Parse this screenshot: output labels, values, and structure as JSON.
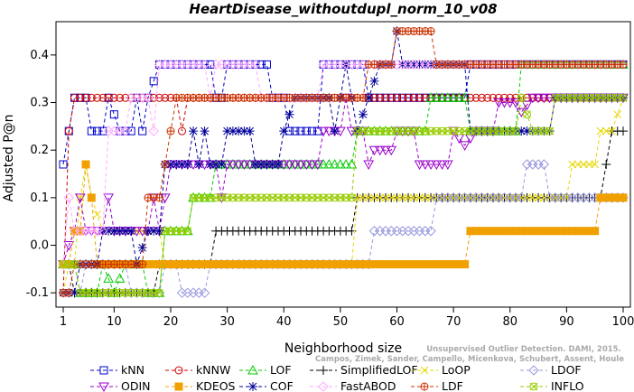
{
  "watermark": {
    "line1": "Unsupervised Outlier Detection. DAMI, 2015.",
    "line2": "Campos, Zimek, Sander, Campello, Micenkova, Schubert, Assent, Houle"
  },
  "chart_data": {
    "type": "line",
    "title": "HeartDisease_withoutdupl_norm_10_v08",
    "xlabel": "Neighborhood size",
    "ylabel": "Adjusted P@n",
    "xlim": [
      1,
      100
    ],
    "ylim": [
      -0.13,
      0.47
    ],
    "xticks": [
      1,
      10,
      20,
      30,
      40,
      50,
      60,
      70,
      80,
      90,
      100
    ],
    "yticks": [
      -0.1,
      0.0,
      0.1,
      0.2,
      0.3,
      0.4
    ],
    "ytick_labels": [
      "-0.1",
      "0.0",
      "0.1",
      "0.2",
      "0.3",
      "0.4"
    ],
    "grid": false,
    "legend_position": "bottom",
    "series": [
      {
        "name": "kNN",
        "color": "#0000cc",
        "marker": "square",
        "segments": [
          [
            1,
            0.17
          ],
          [
            2,
            0.24
          ],
          [
            3,
            0.31
          ],
          [
            5,
            0.31
          ],
          [
            6,
            0.24
          ],
          [
            8,
            0.24
          ],
          [
            9,
            0.31
          ],
          [
            11,
            0.24
          ],
          [
            13,
            0.24
          ],
          [
            14,
            0.31
          ],
          [
            15,
            0.24
          ],
          [
            16,
            0.31
          ],
          [
            18,
            0.38
          ],
          [
            27,
            0.38
          ],
          [
            28,
            0.31
          ],
          [
            29,
            0.31
          ],
          [
            30,
            0.38
          ],
          [
            37,
            0.38
          ],
          [
            38,
            0.31
          ],
          [
            40,
            0.31
          ],
          [
            41,
            0.24
          ],
          [
            46,
            0.24
          ],
          [
            47,
            0.38
          ],
          [
            54,
            0.38
          ],
          [
            55,
            0.31
          ],
          [
            72,
            0.31
          ],
          [
            73,
            0.38
          ],
          [
            100,
            0.38
          ]
        ]
      },
      {
        "name": "kNNW",
        "color": "#cc0000",
        "marker": "circle",
        "segments": [
          [
            1,
            -0.1
          ],
          [
            2,
            0.24
          ],
          [
            3,
            0.31
          ],
          [
            21,
            0.31
          ],
          [
            22,
            0.24
          ],
          [
            23,
            0.31
          ],
          [
            100,
            0.31
          ]
        ]
      },
      {
        "name": "LOF",
        "color": "#00cc00",
        "marker": "triangle",
        "segments": [
          [
            1,
            -0.04
          ],
          [
            3,
            -0.04
          ],
          [
            4,
            -0.1
          ],
          [
            8,
            -0.04
          ],
          [
            10,
            -0.1
          ],
          [
            12,
            -0.04
          ],
          [
            16,
            -0.1
          ],
          [
            18,
            -0.1
          ],
          [
            19,
            0.03
          ],
          [
            23,
            0.03
          ],
          [
            24,
            0.1
          ],
          [
            27,
            0.1
          ],
          [
            28,
            0.17
          ],
          [
            52,
            0.17
          ],
          [
            53,
            0.24
          ],
          [
            65,
            0.24
          ],
          [
            66,
            0.31
          ],
          [
            72,
            0.31
          ],
          [
            73,
            0.24
          ],
          [
            81,
            0.24
          ],
          [
            82,
            0.38
          ],
          [
            100,
            0.38
          ]
        ]
      },
      {
        "name": "SimplifiedLOF",
        "color": "#000000",
        "marker": "plus",
        "segments": [
          [
            1,
            -0.04
          ],
          [
            2,
            -0.04
          ],
          [
            3,
            -0.1
          ],
          [
            17,
            -0.1
          ],
          [
            18,
            -0.04
          ],
          [
            27,
            -0.04
          ],
          [
            28,
            0.03
          ],
          [
            52,
            0.03
          ],
          [
            53,
            0.1
          ],
          [
            96,
            0.1
          ],
          [
            97,
            0.17
          ],
          [
            98,
            0.24
          ],
          [
            100,
            0.24
          ]
        ]
      },
      {
        "name": "LoOP",
        "color": "#e6d800",
        "marker": "x",
        "segments": [
          [
            1,
            -0.1
          ],
          [
            2,
            -0.04
          ],
          [
            3,
            -0.04
          ],
          [
            4,
            0.1
          ],
          [
            5,
            0.17
          ],
          [
            6,
            0.1
          ],
          [
            8,
            0.03
          ],
          [
            18,
            0.03
          ],
          [
            19,
            -0.04
          ],
          [
            52,
            -0.04
          ],
          [
            53,
            0.1
          ],
          [
            90,
            0.1
          ],
          [
            91,
            0.17
          ],
          [
            96,
            0.24
          ],
          [
            98,
            0.24
          ],
          [
            100,
            0.31
          ]
        ]
      },
      {
        "name": "LDOF",
        "color": "#9999dd",
        "marker": "diamond",
        "segments": [
          [
            1,
            -0.04
          ],
          [
            3,
            -0.04
          ],
          [
            4,
            -0.1
          ],
          [
            5,
            -0.04
          ],
          [
            12,
            -0.04
          ],
          [
            13,
            -0.1
          ],
          [
            18,
            -0.1
          ],
          [
            19,
            -0.04
          ],
          [
            22,
            -0.1
          ],
          [
            26,
            -0.1
          ],
          [
            27,
            -0.04
          ],
          [
            55,
            -0.04
          ],
          [
            56,
            0.03
          ],
          [
            66,
            0.03
          ],
          [
            67,
            0.1
          ],
          [
            82,
            0.1
          ],
          [
            83,
            0.17
          ],
          [
            86,
            0.17
          ],
          [
            87,
            0.1
          ],
          [
            100,
            0.1
          ]
        ]
      },
      {
        "name": "ODIN",
        "color": "#9900cc",
        "marker": "triangle-down",
        "segments": [
          [
            1,
            -0.04
          ],
          [
            2,
            0.0
          ],
          [
            3,
            0.03
          ],
          [
            4,
            0.1
          ],
          [
            5,
            0.03
          ],
          [
            8,
            0.03
          ],
          [
            9,
            0.1
          ],
          [
            10,
            0.03
          ],
          [
            16,
            0.03
          ],
          [
            17,
            0.1
          ],
          [
            18,
            0.03
          ],
          [
            20,
            0.17
          ],
          [
            28,
            0.17
          ],
          [
            29,
            0.1
          ],
          [
            30,
            0.17
          ],
          [
            46,
            0.17
          ],
          [
            47,
            0.24
          ],
          [
            50,
            0.24
          ],
          [
            51,
            0.31
          ],
          [
            52,
            0.24
          ],
          [
            55,
            0.17
          ],
          [
            56,
            0.2
          ],
          [
            60,
            0.24
          ],
          [
            64,
            0.17
          ],
          [
            69,
            0.17
          ],
          [
            70,
            0.24
          ],
          [
            72,
            0.21
          ],
          [
            74,
            0.24
          ],
          [
            78,
            0.3
          ],
          [
            82,
            0.28
          ],
          [
            84,
            0.31
          ],
          [
            100,
            0.31
          ]
        ]
      },
      {
        "name": "KDEOS",
        "color": "#f0a000",
        "marker": "square-filled",
        "segments": [
          [
            1,
            -0.04
          ],
          [
            2,
            -0.04
          ],
          [
            3,
            0.03
          ],
          [
            4,
            0.03
          ],
          [
            5,
            0.17
          ],
          [
            6,
            0.1
          ],
          [
            7,
            -0.04
          ],
          [
            19,
            -0.04
          ],
          [
            20,
            -0.04
          ],
          [
            72,
            -0.04
          ],
          [
            73,
            0.03
          ],
          [
            94,
            0.03
          ],
          [
            95,
            0.03
          ],
          [
            96,
            0.1
          ],
          [
            100,
            0.1
          ]
        ]
      },
      {
        "name": "COF",
        "color": "#000099",
        "marker": "asterisk",
        "segments": [
          [
            1,
            -0.1
          ],
          [
            4,
            -0.04
          ],
          [
            8,
            0.03
          ],
          [
            13,
            0.03
          ],
          [
            14,
            -0.04
          ],
          [
            16,
            0.03
          ],
          [
            19,
            0.17
          ],
          [
            23,
            0.17
          ],
          [
            24,
            0.24
          ],
          [
            25,
            0.17
          ],
          [
            26,
            0.24
          ],
          [
            27,
            0.17
          ],
          [
            30,
            0.24
          ],
          [
            34,
            0.24
          ],
          [
            35,
            0.17
          ],
          [
            40,
            0.24
          ],
          [
            42,
            0.31
          ],
          [
            48,
            0.31
          ],
          [
            49,
            0.24
          ],
          [
            51,
            0.38
          ],
          [
            53,
            0.24
          ],
          [
            55,
            0.31
          ],
          [
            57,
            0.38
          ],
          [
            59,
            0.38
          ],
          [
            60,
            0.45
          ],
          [
            61,
            0.38
          ],
          [
            72,
            0.38
          ],
          [
            73,
            0.24
          ],
          [
            87,
            0.24
          ],
          [
            88,
            0.31
          ],
          [
            96,
            0.31
          ],
          [
            100,
            0.31
          ]
        ]
      },
      {
        "name": "FastABOD",
        "color": "#ffaaff",
        "marker": "diamond",
        "segments": [
          [
            1,
            -0.04
          ],
          [
            2,
            0.1
          ],
          [
            3,
            0.03
          ],
          [
            8,
            0.03
          ],
          [
            9,
            0.24
          ],
          [
            12,
            0.24
          ],
          [
            13,
            0.31
          ],
          [
            16,
            0.31
          ],
          [
            17,
            0.24
          ],
          [
            18,
            0.38
          ],
          [
            23,
            0.38
          ],
          [
            24,
            0.38
          ],
          [
            26,
            0.38
          ],
          [
            27,
            0.31
          ],
          [
            28,
            0.38
          ],
          [
            35,
            0.38
          ],
          [
            36,
            0.31
          ],
          [
            45,
            0.31
          ],
          [
            46,
            0.31
          ],
          [
            47,
            0.38
          ],
          [
            100,
            0.38
          ]
        ]
      },
      {
        "name": "LDF",
        "color": "#cc3300",
        "marker": "circle-plus",
        "segments": [
          [
            1,
            -0.1
          ],
          [
            2,
            -0.1
          ],
          [
            3,
            -0.04
          ],
          [
            12,
            -0.04
          ],
          [
            13,
            -0.04
          ],
          [
            14,
            -0.04
          ],
          [
            15,
            -0.04
          ],
          [
            16,
            0.1
          ],
          [
            18,
            0.1
          ],
          [
            19,
            0.17
          ],
          [
            20,
            0.24
          ],
          [
            21,
            0.31
          ],
          [
            54,
            0.31
          ],
          [
            55,
            0.38
          ],
          [
            59,
            0.38
          ],
          [
            60,
            0.45
          ],
          [
            66,
            0.45
          ],
          [
            67,
            0.38
          ],
          [
            100,
            0.38
          ]
        ]
      },
      {
        "name": "INFLO",
        "color": "#99cc00",
        "marker": "asterisk-circle",
        "segments": [
          [
            1,
            -0.04
          ],
          [
            3,
            -0.04
          ],
          [
            4,
            -0.1
          ],
          [
            18,
            -0.1
          ],
          [
            19,
            0.03
          ],
          [
            23,
            0.03
          ],
          [
            24,
            0.1
          ],
          [
            52,
            0.1
          ],
          [
            53,
            0.24
          ],
          [
            81,
            0.24
          ],
          [
            82,
            0.31
          ],
          [
            84,
            0.24
          ],
          [
            87,
            0.24
          ],
          [
            88,
            0.31
          ],
          [
            100,
            0.31
          ]
        ]
      }
    ]
  }
}
